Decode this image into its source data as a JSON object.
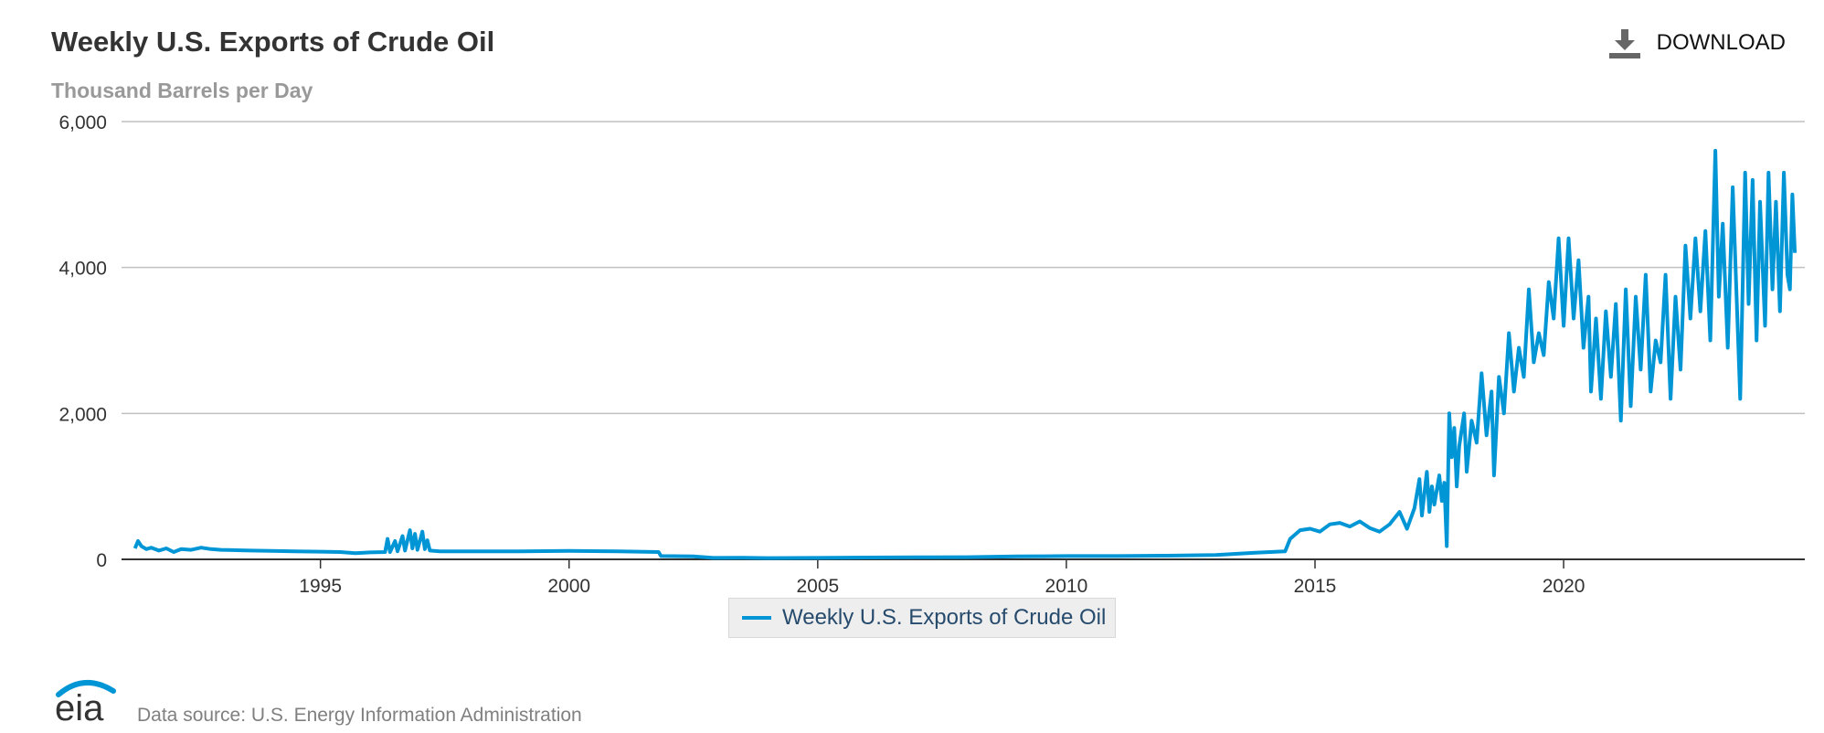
{
  "header": {
    "title": "Weekly U.S. Exports of Crude Oil",
    "subtitle": "Thousand Barrels per Day",
    "download_label": "DOWNLOAD",
    "download_icon": "download-icon"
  },
  "footer": {
    "logo_text": "eia",
    "source": "Data source: U.S. Energy Information Administration"
  },
  "colors": {
    "series": "#0096d6",
    "grid": "#c0c0c0",
    "axis": "#333333",
    "logo": "#0096d6"
  },
  "chart_data": {
    "type": "line",
    "title": "Weekly U.S. Exports of Crude Oil",
    "subtitle": "Thousand Barrels per Day",
    "xlim": [
      1991.0,
      2024.85
    ],
    "ylim": [
      0,
      6000
    ],
    "x_ticks": [
      1995,
      2000,
      2005,
      2010,
      2015,
      2020
    ],
    "y_ticks": [
      0,
      2000,
      4000,
      6000
    ],
    "y_tick_labels": [
      "0",
      "2,000",
      "4,000",
      "6,000"
    ],
    "grid": true,
    "legend_position": "bottom-center",
    "series": [
      {
        "name": "Weekly U.S. Exports of Crude Oil",
        "color": "#0096d6",
        "points": [
          [
            1991.27,
            150
          ],
          [
            1991.33,
            250
          ],
          [
            1991.4,
            180
          ],
          [
            1991.5,
            140
          ],
          [
            1991.6,
            160
          ],
          [
            1991.75,
            120
          ],
          [
            1991.9,
            150
          ],
          [
            1992.05,
            100
          ],
          [
            1992.2,
            140
          ],
          [
            1992.4,
            130
          ],
          [
            1992.6,
            160
          ],
          [
            1992.8,
            140
          ],
          [
            1993.0,
            130
          ],
          [
            1993.3,
            125
          ],
          [
            1993.6,
            120
          ],
          [
            1994.0,
            115
          ],
          [
            1994.5,
            110
          ],
          [
            1995.0,
            105
          ],
          [
            1995.4,
            100
          ],
          [
            1995.7,
            85
          ],
          [
            1996.0,
            95
          ],
          [
            1996.3,
            100
          ],
          [
            1996.35,
            280
          ],
          [
            1996.4,
            100
          ],
          [
            1996.5,
            250
          ],
          [
            1996.55,
            110
          ],
          [
            1996.65,
            320
          ],
          [
            1996.7,
            120
          ],
          [
            1996.8,
            400
          ],
          [
            1996.85,
            150
          ],
          [
            1996.9,
            350
          ],
          [
            1996.95,
            130
          ],
          [
            1997.05,
            380
          ],
          [
            1997.1,
            140
          ],
          [
            1997.15,
            260
          ],
          [
            1997.2,
            120
          ],
          [
            1997.4,
            110
          ],
          [
            1998.0,
            110
          ],
          [
            1999.0,
            110
          ],
          [
            2000.0,
            115
          ],
          [
            2001.0,
            110
          ],
          [
            2001.8,
            100
          ],
          [
            2001.85,
            45
          ],
          [
            2002.5,
            40
          ],
          [
            2002.9,
            20
          ],
          [
            2003.5,
            22
          ],
          [
            2004.0,
            18
          ],
          [
            2005.0,
            20
          ],
          [
            2006.0,
            25
          ],
          [
            2007.0,
            28
          ],
          [
            2008.0,
            30
          ],
          [
            2009.0,
            40
          ],
          [
            2010.0,
            45
          ],
          [
            2011.0,
            45
          ],
          [
            2012.0,
            50
          ],
          [
            2013.0,
            60
          ],
          [
            2013.8,
            90
          ],
          [
            2014.4,
            110
          ],
          [
            2014.5,
            280
          ],
          [
            2014.7,
            400
          ],
          [
            2014.9,
            420
          ],
          [
            2015.1,
            380
          ],
          [
            2015.3,
            480
          ],
          [
            2015.5,
            500
          ],
          [
            2015.7,
            450
          ],
          [
            2015.9,
            520
          ],
          [
            2016.1,
            430
          ],
          [
            2016.3,
            380
          ],
          [
            2016.5,
            480
          ],
          [
            2016.7,
            650
          ],
          [
            2016.85,
            420
          ],
          [
            2017.0,
            700
          ],
          [
            2017.1,
            1100
          ],
          [
            2017.15,
            600
          ],
          [
            2017.2,
            900
          ],
          [
            2017.25,
            1200
          ],
          [
            2017.3,
            650
          ],
          [
            2017.35,
            1000
          ],
          [
            2017.4,
            750
          ],
          [
            2017.5,
            1150
          ],
          [
            2017.55,
            800
          ],
          [
            2017.6,
            1050
          ],
          [
            2017.65,
            180
          ],
          [
            2017.7,
            2000
          ],
          [
            2017.75,
            1400
          ],
          [
            2017.8,
            1800
          ],
          [
            2017.85,
            1000
          ],
          [
            2017.9,
            1550
          ],
          [
            2018.0,
            2000
          ],
          [
            2018.05,
            1200
          ],
          [
            2018.15,
            1900
          ],
          [
            2018.25,
            1600
          ],
          [
            2018.35,
            2550
          ],
          [
            2018.45,
            1700
          ],
          [
            2018.55,
            2300
          ],
          [
            2018.6,
            1150
          ],
          [
            2018.7,
            2500
          ],
          [
            2018.8,
            2000
          ],
          [
            2018.9,
            3100
          ],
          [
            2019.0,
            2300
          ],
          [
            2019.1,
            2900
          ],
          [
            2019.2,
            2500
          ],
          [
            2019.3,
            3700
          ],
          [
            2019.4,
            2700
          ],
          [
            2019.5,
            3100
          ],
          [
            2019.6,
            2800
          ],
          [
            2019.7,
            3800
          ],
          [
            2019.8,
            3300
          ],
          [
            2019.9,
            4400
          ],
          [
            2020.0,
            3200
          ],
          [
            2020.1,
            4400
          ],
          [
            2020.2,
            3300
          ],
          [
            2020.3,
            4100
          ],
          [
            2020.4,
            2900
          ],
          [
            2020.5,
            3600
          ],
          [
            2020.55,
            2300
          ],
          [
            2020.65,
            3300
          ],
          [
            2020.75,
            2200
          ],
          [
            2020.85,
            3400
          ],
          [
            2020.95,
            2500
          ],
          [
            2021.05,
            3500
          ],
          [
            2021.15,
            1900
          ],
          [
            2021.25,
            3700
          ],
          [
            2021.35,
            2100
          ],
          [
            2021.45,
            3600
          ],
          [
            2021.55,
            2600
          ],
          [
            2021.65,
            3900
          ],
          [
            2021.75,
            2300
          ],
          [
            2021.85,
            3000
          ],
          [
            2021.95,
            2700
          ],
          [
            2022.05,
            3900
          ],
          [
            2022.15,
            2200
          ],
          [
            2022.25,
            3600
          ],
          [
            2022.35,
            2600
          ],
          [
            2022.45,
            4300
          ],
          [
            2022.55,
            3300
          ],
          [
            2022.65,
            4400
          ],
          [
            2022.75,
            3400
          ],
          [
            2022.85,
            4500
          ],
          [
            2022.95,
            3000
          ],
          [
            2023.05,
            5600
          ],
          [
            2023.12,
            3600
          ],
          [
            2023.2,
            4600
          ],
          [
            2023.3,
            2900
          ],
          [
            2023.4,
            5100
          ],
          [
            2023.5,
            3200
          ],
          [
            2023.55,
            2200
          ],
          [
            2023.65,
            5300
          ],
          [
            2023.72,
            3500
          ],
          [
            2023.8,
            5200
          ],
          [
            2023.88,
            3000
          ],
          [
            2023.95,
            4900
          ],
          [
            2024.05,
            3200
          ],
          [
            2024.12,
            5300
          ],
          [
            2024.2,
            3700
          ],
          [
            2024.27,
            4900
          ],
          [
            2024.35,
            3400
          ],
          [
            2024.43,
            5300
          ],
          [
            2024.5,
            3900
          ],
          [
            2024.55,
            3700
          ],
          [
            2024.6,
            5000
          ],
          [
            2024.65,
            4200
          ]
        ]
      }
    ]
  }
}
